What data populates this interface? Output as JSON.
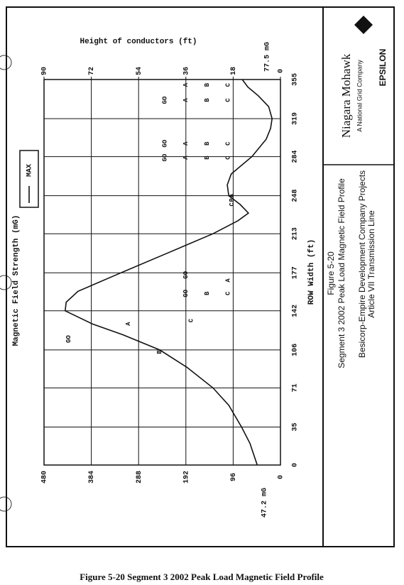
{
  "chart_data": {
    "type": "line",
    "title": "Figure 5-20",
    "subtitle": "Segment 3 2002 Peak Load Magnetic Field Profile",
    "project": "Besicorp-Empire Development Company Projects",
    "project_line2": "Article VII Transmission Line",
    "company": "Niagara Mohawk",
    "company_sub": "A National Grid Company",
    "consultant": "EPSILON",
    "caption": "Figure 5-20 Segment 3 2002 Peak Load Magnetic Field Profile",
    "x_label": "ROW Width (ft)",
    "y_label": "Magnetic Field Strength (mG)",
    "y2_label": "Height of conductors (ft)",
    "annotations": [
      "47.2 mG",
      "77.5 mG"
    ],
    "xlim": [
      0,
      355
    ],
    "xticks": [
      0,
      35,
      71,
      106,
      142,
      177,
      213,
      248,
      284,
      319,
      355
    ],
    "ylim": [
      0,
      480
    ],
    "yticks": [
      0,
      96,
      192,
      288,
      384,
      480
    ],
    "y2lim": [
      0,
      90
    ],
    "y2ticks": [
      0,
      18,
      36,
      54,
      72,
      90
    ],
    "grid": true,
    "x": [
      0,
      20,
      35,
      55,
      71,
      90,
      106,
      120,
      130,
      142,
      150,
      160,
      177,
      195,
      213,
      225,
      232,
      240,
      248,
      258,
      268,
      284,
      300,
      310,
      319,
      330,
      340,
      348,
      355
    ],
    "series": [
      {
        "name": "MAX",
        "color": "#111111",
        "values": [
          47.2,
          62,
          79,
          105,
          137,
          190,
          245,
          320,
          382,
          437,
          435,
          411,
          324,
          230,
          137,
          86,
          65,
          82,
          105,
          108,
          100,
          58,
          29,
          20,
          17,
          24,
          45,
          66,
          77.5
        ]
      }
    ],
    "conductors": [
      {
        "label": "GO",
        "x": 116,
        "y": 80.6
      },
      {
        "label": "A",
        "x": 130,
        "y": 58
      },
      {
        "label": "B",
        "x": 104,
        "y": 46
      },
      {
        "label": "C",
        "x": 133,
        "y": 34
      },
      {
        "label": "GO",
        "x": 158,
        "y": 36
      },
      {
        "label": "B",
        "x": 158,
        "y": 28
      },
      {
        "label": "C",
        "x": 158,
        "y": 20
      },
      {
        "label": "GO",
        "x": 175,
        "y": 36
      },
      {
        "label": "A",
        "x": 170,
        "y": 20
      },
      {
        "label": "C",
        "x": 240,
        "y": 18.5
      },
      {
        "label": "B",
        "x": 244,
        "y": 18.5
      },
      {
        "label": "A",
        "x": 248,
        "y": 18.5
      },
      {
        "label": "GO",
        "x": 283,
        "y": 44
      },
      {
        "label": "A",
        "x": 283,
        "y": 36
      },
      {
        "label": "B",
        "x": 283,
        "y": 28
      },
      {
        "label": "C",
        "x": 283,
        "y": 20
      },
      {
        "label": "GO",
        "x": 296,
        "y": 44
      },
      {
        "label": "A",
        "x": 296,
        "y": 36
      },
      {
        "label": "B",
        "x": 296,
        "y": 28
      },
      {
        "label": "C",
        "x": 296,
        "y": 20
      },
      {
        "label": "GO",
        "x": 336,
        "y": 44
      },
      {
        "label": "A",
        "x": 336,
        "y": 36
      },
      {
        "label": "B",
        "x": 336,
        "y": 28
      },
      {
        "label": "C",
        "x": 336,
        "y": 20
      },
      {
        "label": "A",
        "x": 350,
        "y": 36
      },
      {
        "label": "B",
        "x": 350,
        "y": 28
      },
      {
        "label": "C",
        "x": 350,
        "y": 20
      }
    ]
  }
}
